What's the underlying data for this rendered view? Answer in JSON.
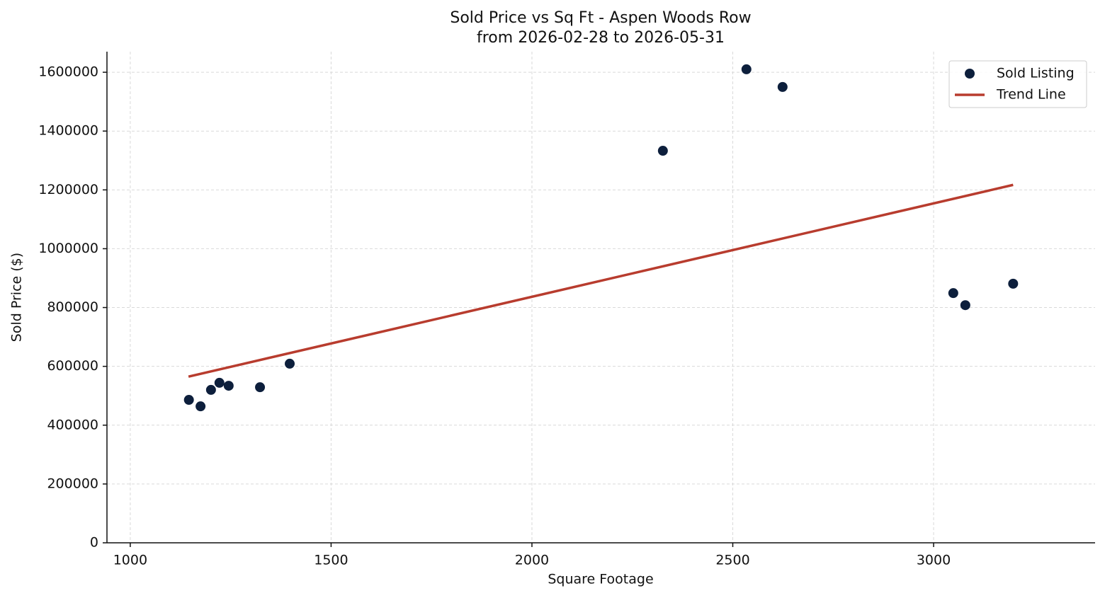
{
  "chart_data": {
    "type": "scatter",
    "title": "Sold Price vs Sq Ft - Aspen Woods Row",
    "subtitle": "from 2026-02-28 to 2026-05-31",
    "x_label": "Square Footage",
    "y_label": "Sold Price ($)",
    "xlim": [
      942,
      3402
    ],
    "ylim": [
      0,
      1670000
    ],
    "xticks": [
      1000,
      1500,
      2000,
      2500,
      3000
    ],
    "yticks": [
      0,
      200000,
      400000,
      600000,
      800000,
      1000000,
      1200000,
      1400000,
      1600000
    ],
    "grid": true,
    "legend": "upper right",
    "series": [
      {
        "name": "Sold Listing",
        "type": "scatter",
        "color": "#0d1f3c",
        "x": [
          1146,
          1175,
          1201,
          1222,
          1245,
          1323,
          1397,
          2326,
          2534,
          2624,
          3049,
          3079,
          3198
        ],
        "values": [
          486000,
          464000,
          520000,
          544000,
          534000,
          529000,
          609000,
          1333000,
          1610000,
          1550000,
          849000,
          808000,
          881000
        ]
      },
      {
        "name": "Trend Line",
        "type": "line",
        "color": "#b83c2e",
        "x": [
          1145,
          3198
        ],
        "values": [
          565000,
          1217000
        ]
      }
    ]
  }
}
